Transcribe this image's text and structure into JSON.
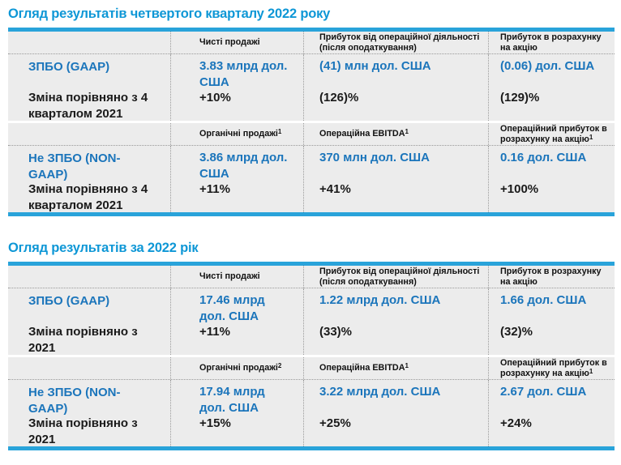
{
  "colors": {
    "accent_bar": "#29a3da",
    "title_blue": "#0e97d6",
    "value_blue": "#1b75bb",
    "row_background": "#ececec",
    "text_dark": "#1a1a1a"
  },
  "tables": [
    {
      "title": "Огляд результатів четвертого кварталу 2022 року",
      "header1": [
        {
          "text": "Чисті продажі",
          "sup": ""
        },
        {
          "text": "Прибуток від операційної діяльності (після оподаткування)",
          "sup": ""
        },
        {
          "text": "Прибуток в розрахунку на акцію",
          "sup": ""
        }
      ],
      "row1": {
        "label": "ЗПБО (GAAP)",
        "sublabel": "Зміна порівняно з 4 кварталом 2021",
        "values": [
          "3.83 млрд дол. США",
          "(41) млн дол. США",
          "(0.06) дол. США"
        ],
        "changes": [
          "+10%",
          "(126)%",
          "(129)%"
        ]
      },
      "header2": [
        {
          "text": "Органічні продажі",
          "sup": "1"
        },
        {
          "text": "Операційна EBITDA",
          "sup": "1"
        },
        {
          "text": "Операційний прибуток в розрахунку на акцію",
          "sup": "1"
        }
      ],
      "row2": {
        "label": "Не ЗПБО (NON-GAAP)",
        "sublabel": "Зміна порівняно з 4 кварталом 2021",
        "values": [
          "3.86 млрд дол. США",
          "370 млн дол. США",
          "0.16 дол. США"
        ],
        "changes": [
          "+11%",
          "+41%",
          "+100%"
        ]
      }
    },
    {
      "title": "Огляд результатів за 2022 рік",
      "header1": [
        {
          "text": "Чисті продажі",
          "sup": ""
        },
        {
          "text": "Прибуток від операційної діяльності (після оподаткування)",
          "sup": ""
        },
        {
          "text": "Прибуток в розрахунку на акцію",
          "sup": ""
        }
      ],
      "row1": {
        "label": "ЗПБО (GAAP)",
        "sublabel": "Зміна порівняно з 2021",
        "values": [
          "17.46 млрд дол. США",
          "1.22 млрд дол. США",
          "1.66 дол. США"
        ],
        "changes": [
          "+11%",
          "(33)%",
          "(32)%"
        ]
      },
      "header2": [
        {
          "text": "Органічні продажі",
          "sup": "2"
        },
        {
          "text": "Операційна EBITDA",
          "sup": "1"
        },
        {
          "text": "Операційний прибуток в розрахунку на акцію",
          "sup": "1"
        }
      ],
      "row2": {
        "label": "Не ЗПБО (NON-GAAP)",
        "sublabel": "Зміна порівняно з 2021",
        "values": [
          "17.94 млрд дол. США",
          "3.22 млрд дол. США",
          "2.67 дол. США"
        ],
        "changes": [
          "+15%",
          "+25%",
          "+24%"
        ]
      }
    }
  ]
}
